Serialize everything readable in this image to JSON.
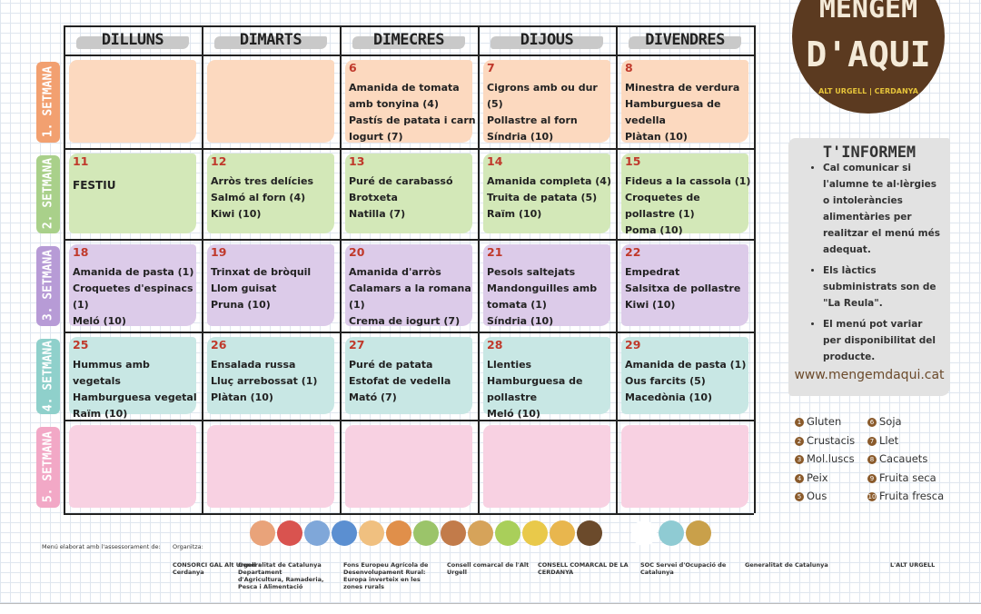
{
  "days": [
    "DILLUNS",
    "DIMARTS",
    "DIMECRES",
    "DIJOUS",
    "DIVENDRES"
  ],
  "weeks": [
    {
      "label": "1. SETMANA",
      "cells": [
        null,
        null,
        {
          "day": 6,
          "items": [
            "Amanida de tomata amb tonyina (4)",
            "Pastís de patata i carn",
            "Iogurt (7)"
          ]
        },
        {
          "day": 7,
          "items": [
            "Cigrons amb ou dur (5)",
            "Pollastre al forn",
            "Síndria (10)"
          ]
        },
        {
          "day": 8,
          "items": [
            "Minestra de verdura",
            "Hamburguesa de vedella",
            "Plàtan (10)"
          ]
        }
      ]
    },
    {
      "label": "2. SETMANA",
      "cells": [
        {
          "day": 11,
          "items": [
            "FESTIU"
          ]
        },
        {
          "day": 12,
          "items": [
            "Arròs tres delícies",
            "Salmó al forn (4)",
            "Kiwi (10)"
          ]
        },
        {
          "day": 13,
          "items": [
            "Puré de carabassó",
            "Brotxeta",
            "Natilla (7)"
          ]
        },
        {
          "day": 14,
          "items": [
            "Amanida completa (4)",
            "Truita de patata (5)",
            "Raïm (10)"
          ]
        },
        {
          "day": 15,
          "items": [
            "Fideus a la cassola (1)",
            "Croquetes de pollastre (1)",
            "Poma (10)"
          ]
        }
      ]
    },
    {
      "label": "3. SETMANA",
      "cells": [
        {
          "day": 18,
          "items": [
            "Amanida de pasta (1)",
            "Croquetes d'espinacs (1)",
            "Meló (10)"
          ]
        },
        {
          "day": 19,
          "items": [
            "Trinxat de bròquil",
            "Llom guisat",
            "Pruna (10)"
          ]
        },
        {
          "day": 20,
          "items": [
            "Amanida d'arròs",
            "Calamars a la romana (1)",
            "Crema de iogurt (7)"
          ]
        },
        {
          "day": 21,
          "items": [
            "Pesols saltejats",
            "Mandonguilles amb tomata (1)",
            "Síndria (10)"
          ]
        },
        {
          "day": 22,
          "items": [
            "Empedrat",
            "Salsitxa de pollastre",
            "Kiwi (10)"
          ]
        }
      ]
    },
    {
      "label": "4. SETMANA",
      "cells": [
        {
          "day": 25,
          "items": [
            "Hummus amb vegetals",
            "Hamburguesa vegetal",
            "Raïm (10)"
          ]
        },
        {
          "day": 26,
          "items": [
            "Ensalada russa",
            "Lluç arrebossat (1)",
            "Plàtan (10)"
          ]
        },
        {
          "day": 27,
          "items": [
            "Puré de patata",
            "Estofat de vedella",
            "Mató (7)"
          ]
        },
        {
          "day": 28,
          "items": [
            "Llenties",
            "Hamburguesa de pollastre",
            "Meló (10)"
          ]
        },
        {
          "day": 29,
          "items": [
            "Amanida de pasta (1)",
            "Ous farcits (5)",
            "Macedònia (10)"
          ]
        }
      ]
    },
    {
      "label": "5. SETMANA",
      "cells": [
        null,
        null,
        null,
        null,
        null
      ]
    }
  ],
  "logo": {
    "title": "MENGEM",
    "subtitle": "D'AQUI",
    "tagline": "ALT URGELL | CERDANYA"
  },
  "info": {
    "title": "T'INFORMEM",
    "bullets": [
      "Cal comunicar si l'alumne te al·lèrgies o intoleràncies alimentàries per realitzar el menú més adequat.",
      "Els làctics subministrats son de \"La Reula\".",
      "El menú pot variar per disponibilitat del producte."
    ],
    "url": "www.mengemdaqui.cat"
  },
  "allergens": [
    {
      "num": 1,
      "name": "Gluten"
    },
    {
      "num": 2,
      "name": "Crustacis"
    },
    {
      "num": 3,
      "name": "Mol.luscs"
    },
    {
      "num": 4,
      "name": "Peix"
    },
    {
      "num": 5,
      "name": "Ous"
    },
    {
      "num": 6,
      "name": "Soja"
    },
    {
      "num": 7,
      "name": "Llet"
    },
    {
      "num": 8,
      "name": "Cacauets"
    },
    {
      "num": 9,
      "name": "Fruita seca"
    },
    {
      "num": 10,
      "name": "Fruita fresca"
    }
  ],
  "footer": {
    "advice": "Menú elaborat amb l'assessorament de:",
    "organizer": "Organitza:",
    "logos": [
      "CONSORCI GAL Alt Urgell · Cerdanya",
      "Generalitat de Catalunya Departament d'Agricultura, Ramaderia, Pesca i Alimentació",
      "Fons Europeu Agrícola de Desenvolupament Rural: Europa inverteix en les zones rurals",
      "Consell comarcal de l'Alt Urgell",
      "CONSELL COMARCAL DE LA CERDANYA",
      "SOC Servei d'Ocupació de Catalunya",
      "Generalitat de Catalunya",
      "L'ALT URGELL"
    ]
  }
}
